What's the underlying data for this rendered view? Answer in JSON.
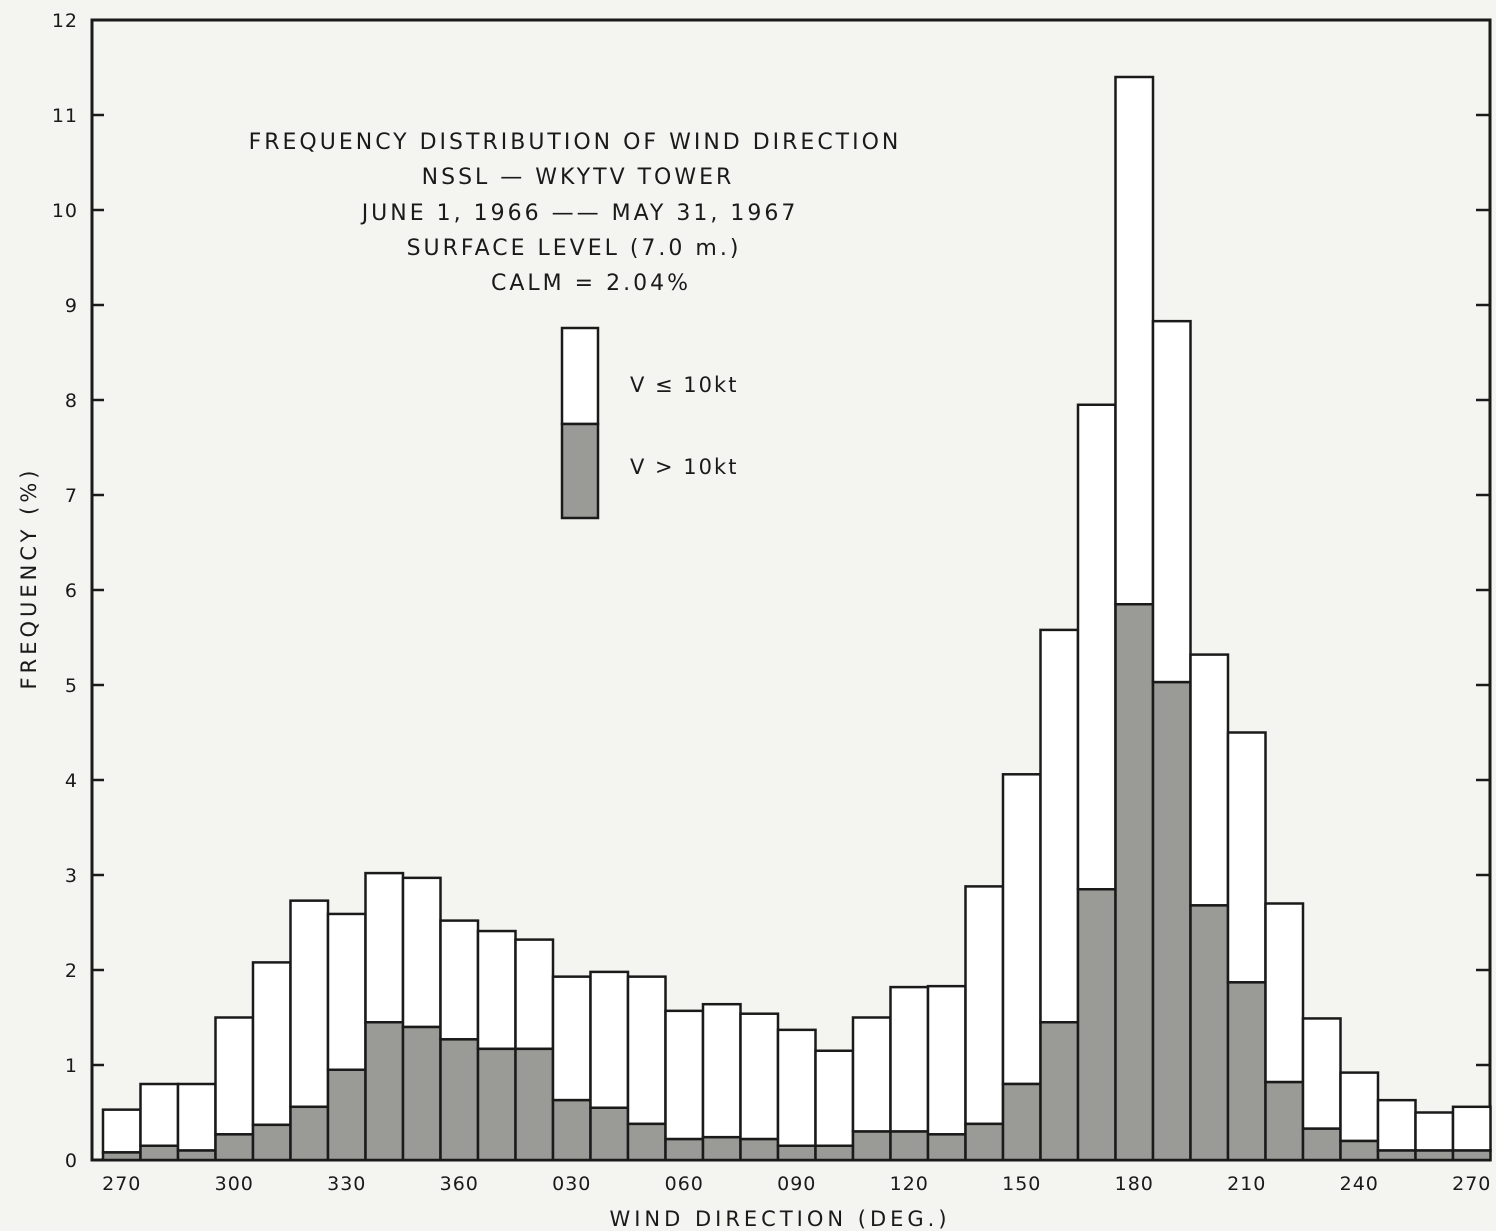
{
  "chart_data": {
    "type": "bar",
    "stacked": true,
    "title": [
      "FREQUENCY  DISTRIBUTION  OF  WIND  DIRECTION",
      "NSSL — WKYTV  TOWER",
      "JUNE 1, 1966 —— MAY 31, 1967",
      "SURFACE  LEVEL   (7.0 m.)",
      "CALM = 2.04%"
    ],
    "xlabel": "WIND  DIRECTION   (DEG.)",
    "ylabel": "FREQUENCY (%)",
    "ylim": [
      0,
      12
    ],
    "yticks": [
      "0",
      "1",
      "2",
      "3",
      "4",
      "5",
      "6",
      "7",
      "8",
      "9",
      "10",
      "11",
      "12"
    ],
    "xtick_labels": [
      "270",
      "300",
      "330",
      "360",
      "030",
      "060",
      "090",
      "120",
      "150",
      "180",
      "210",
      "240",
      "270"
    ],
    "categories": [
      "270",
      "280",
      "290",
      "300",
      "310",
      "320",
      "330",
      "340",
      "350",
      "360",
      "010",
      "020",
      "030",
      "040",
      "050",
      "060",
      "070",
      "080",
      "090",
      "100",
      "110",
      "120",
      "130",
      "140",
      "150",
      "160",
      "170",
      "180",
      "190",
      "200",
      "210",
      "220",
      "230",
      "240",
      "250",
      "260",
      "270"
    ],
    "legend": {
      "placement": "upper-center",
      "entries": [
        "V ≤ 10kt",
        "V > 10kt"
      ]
    },
    "colors": {
      "light": "#ffffff",
      "dark": "#9a9a96",
      "edge": "#1a1a1a"
    },
    "series": [
      {
        "name": "V > 10kt",
        "values": [
          0.08,
          0.15,
          0.1,
          0.27,
          0.37,
          0.56,
          0.95,
          1.45,
          1.4,
          1.27,
          1.17,
          1.17,
          0.63,
          0.55,
          0.38,
          0.22,
          0.24,
          0.22,
          0.15,
          0.15,
          0.3,
          0.3,
          0.27,
          0.38,
          0.8,
          1.45,
          2.85,
          5.85,
          5.03,
          2.68,
          1.87,
          0.82,
          0.33,
          0.2,
          0.1,
          0.1,
          0.1
        ]
      },
      {
        "name": "V ≤ 10kt",
        "values": [
          0.45,
          0.65,
          0.7,
          1.23,
          1.71,
          2.17,
          1.64,
          1.57,
          1.57,
          1.25,
          1.24,
          1.15,
          1.3,
          1.43,
          1.55,
          1.35,
          1.4,
          1.32,
          1.22,
          1.0,
          1.2,
          1.52,
          1.56,
          2.5,
          3.26,
          4.13,
          5.1,
          5.55,
          3.8,
          2.64,
          2.63,
          1.88,
          1.16,
          0.72,
          0.53,
          0.4,
          0.46
        ]
      }
    ],
    "totals": [
      0.53,
      0.8,
      0.8,
      1.5,
      2.08,
      2.73,
      2.59,
      3.02,
      2.97,
      2.52,
      2.41,
      2.32,
      1.93,
      1.98,
      1.93,
      1.57,
      1.64,
      1.54,
      1.37,
      1.15,
      1.5,
      1.82,
      1.83,
      2.88,
      4.06,
      5.58,
      7.95,
      11.4,
      8.83,
      5.32,
      4.5,
      2.7,
      1.49,
      0.92,
      0.63,
      0.5,
      0.56
    ]
  }
}
